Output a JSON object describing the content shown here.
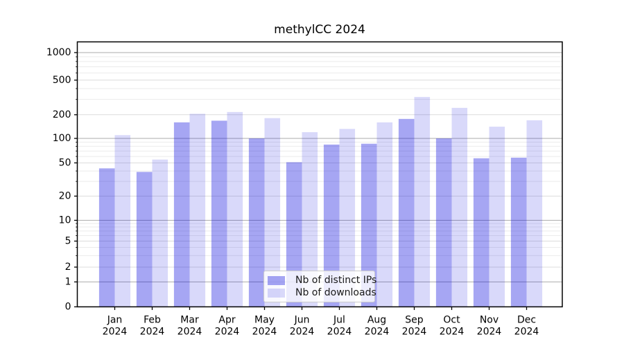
{
  "title": "methylCC 2024",
  "legend": {
    "items": [
      {
        "label": "Nb of distinct IPs",
        "color": "rgba(0,0,222,0.35)"
      },
      {
        "label": "Nb of downloads",
        "color": "rgba(0,0,222,0.15)"
      }
    ]
  },
  "chart_data": {
    "type": "bar",
    "title": "methylCC 2024",
    "categories": [
      "Jan",
      "Feb",
      "Mar",
      "Apr",
      "May",
      "Jun",
      "Jul",
      "Aug",
      "Sep",
      "Oct",
      "Nov",
      "Dec"
    ],
    "category_year": "2024",
    "series": [
      {
        "name": "Nb of distinct IPs",
        "color": "rgba(0,0,222,0.35)",
        "values": [
          43,
          39,
          160,
          168,
          100,
          51,
          84,
          86,
          177,
          100,
          57,
          58
        ]
      },
      {
        "name": "Nb of downloads",
        "color": "rgba(0,0,222,0.15)",
        "values": [
          110,
          55,
          205,
          215,
          181,
          120,
          132,
          160,
          320,
          240,
          141,
          170
        ]
      }
    ],
    "xlabel": "",
    "ylabel": "",
    "yscale": "symlog",
    "yticks": [
      0,
      1,
      2,
      5,
      10,
      20,
      50,
      100,
      200,
      500,
      1000
    ],
    "ylim": [
      0,
      1350
    ],
    "grid": true,
    "legend_position": "inside lower center"
  },
  "colors": {
    "background": "#ffffff",
    "axis": "#000000",
    "grid_major": "#ababab",
    "grid_labeled": "#dcdcdc",
    "grid_minor": "#ebebeb",
    "tick_label": "#000000"
  }
}
